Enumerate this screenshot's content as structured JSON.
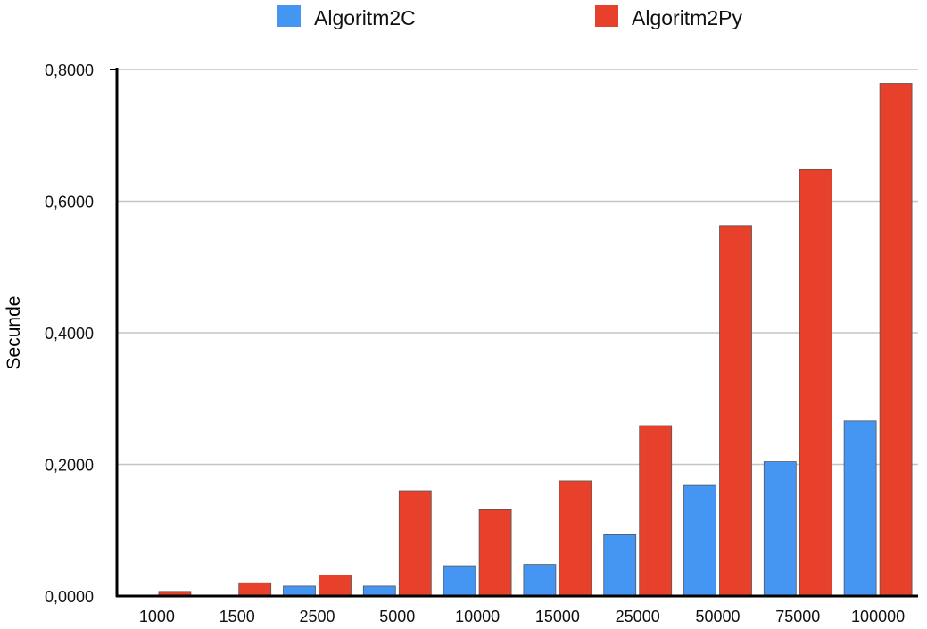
{
  "chart_data": {
    "type": "bar",
    "title": "",
    "xlabel": "",
    "ylabel": "Secunde",
    "ylim": [
      0,
      0.8
    ],
    "yticks": [
      "0,0000",
      "0,2000",
      "0,4000",
      "0,6000",
      "0,8000"
    ],
    "ytick_values": [
      0,
      0.2,
      0.4,
      0.6,
      0.8
    ],
    "grid": true,
    "legend_position": "top",
    "categories": [
      "1000",
      "1500",
      "2500",
      "5000",
      "10000",
      "15000",
      "25000",
      "50000",
      "75000",
      "100000"
    ],
    "series": [
      {
        "name": "Algoritm2C",
        "color": "#4496f2",
        "values": [
          0.001,
          0.001,
          0.015,
          0.015,
          0.046,
          0.048,
          0.093,
          0.168,
          0.204,
          0.266
        ]
      },
      {
        "name": "Algoritm2Py",
        "color": "#e8412b",
        "values": [
          0.007,
          0.02,
          0.032,
          0.16,
          0.131,
          0.175,
          0.259,
          0.563,
          0.649,
          0.779
        ]
      }
    ]
  }
}
